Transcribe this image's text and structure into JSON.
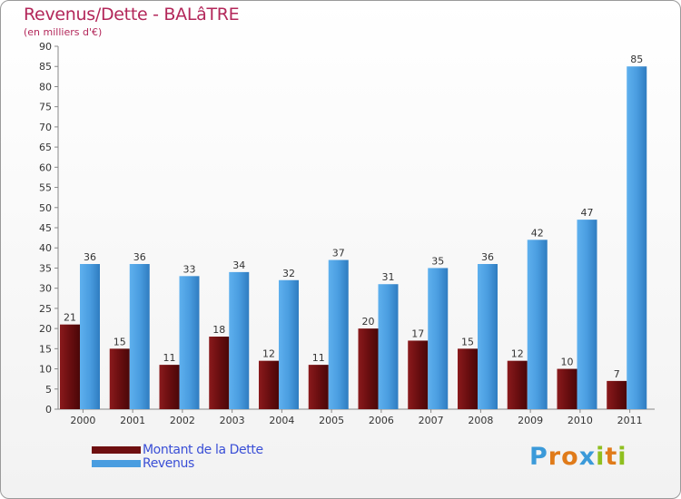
{
  "header": {
    "title": "Revenus/Dette - BALâTRE",
    "subtitle": "(en milliers d'€)"
  },
  "chart_data": {
    "type": "bar",
    "categories": [
      "2000",
      "2001",
      "2002",
      "2003",
      "2004",
      "2005",
      "2006",
      "2007",
      "2008",
      "2009",
      "2010",
      "2011"
    ],
    "series": [
      {
        "name": "Montant de la Dette",
        "color": "#7a1416",
        "values": [
          21,
          15,
          11,
          18,
          12,
          11,
          20,
          17,
          15,
          12,
          10,
          7
        ]
      },
      {
        "name": "Revenus",
        "color": "#4a9de0",
        "values": [
          36,
          36,
          33,
          34,
          32,
          37,
          31,
          35,
          36,
          42,
          47,
          85
        ]
      }
    ],
    "ylim": [
      0,
      90
    ],
    "yticks": [
      0,
      5,
      10,
      15,
      20,
      25,
      30,
      35,
      40,
      45,
      50,
      55,
      60,
      65,
      70,
      75,
      80,
      85,
      90
    ],
    "grid": false,
    "legend_position": "bottom-left"
  },
  "legend": {
    "items": [
      {
        "label": "Montant de la Dette",
        "color": "#6e0f10"
      },
      {
        "label": "Revenus",
        "color": "#4a9de0"
      }
    ]
  },
  "logo": {
    "letters": [
      "P",
      "r",
      "o",
      "x",
      "i",
      "t",
      "i"
    ],
    "colors": [
      "#3b9ad9",
      "#e07b1a",
      "#e07b1a",
      "#3b9ad9",
      "#8fbf1f",
      "#e07b1a",
      "#8fbf1f"
    ]
  }
}
